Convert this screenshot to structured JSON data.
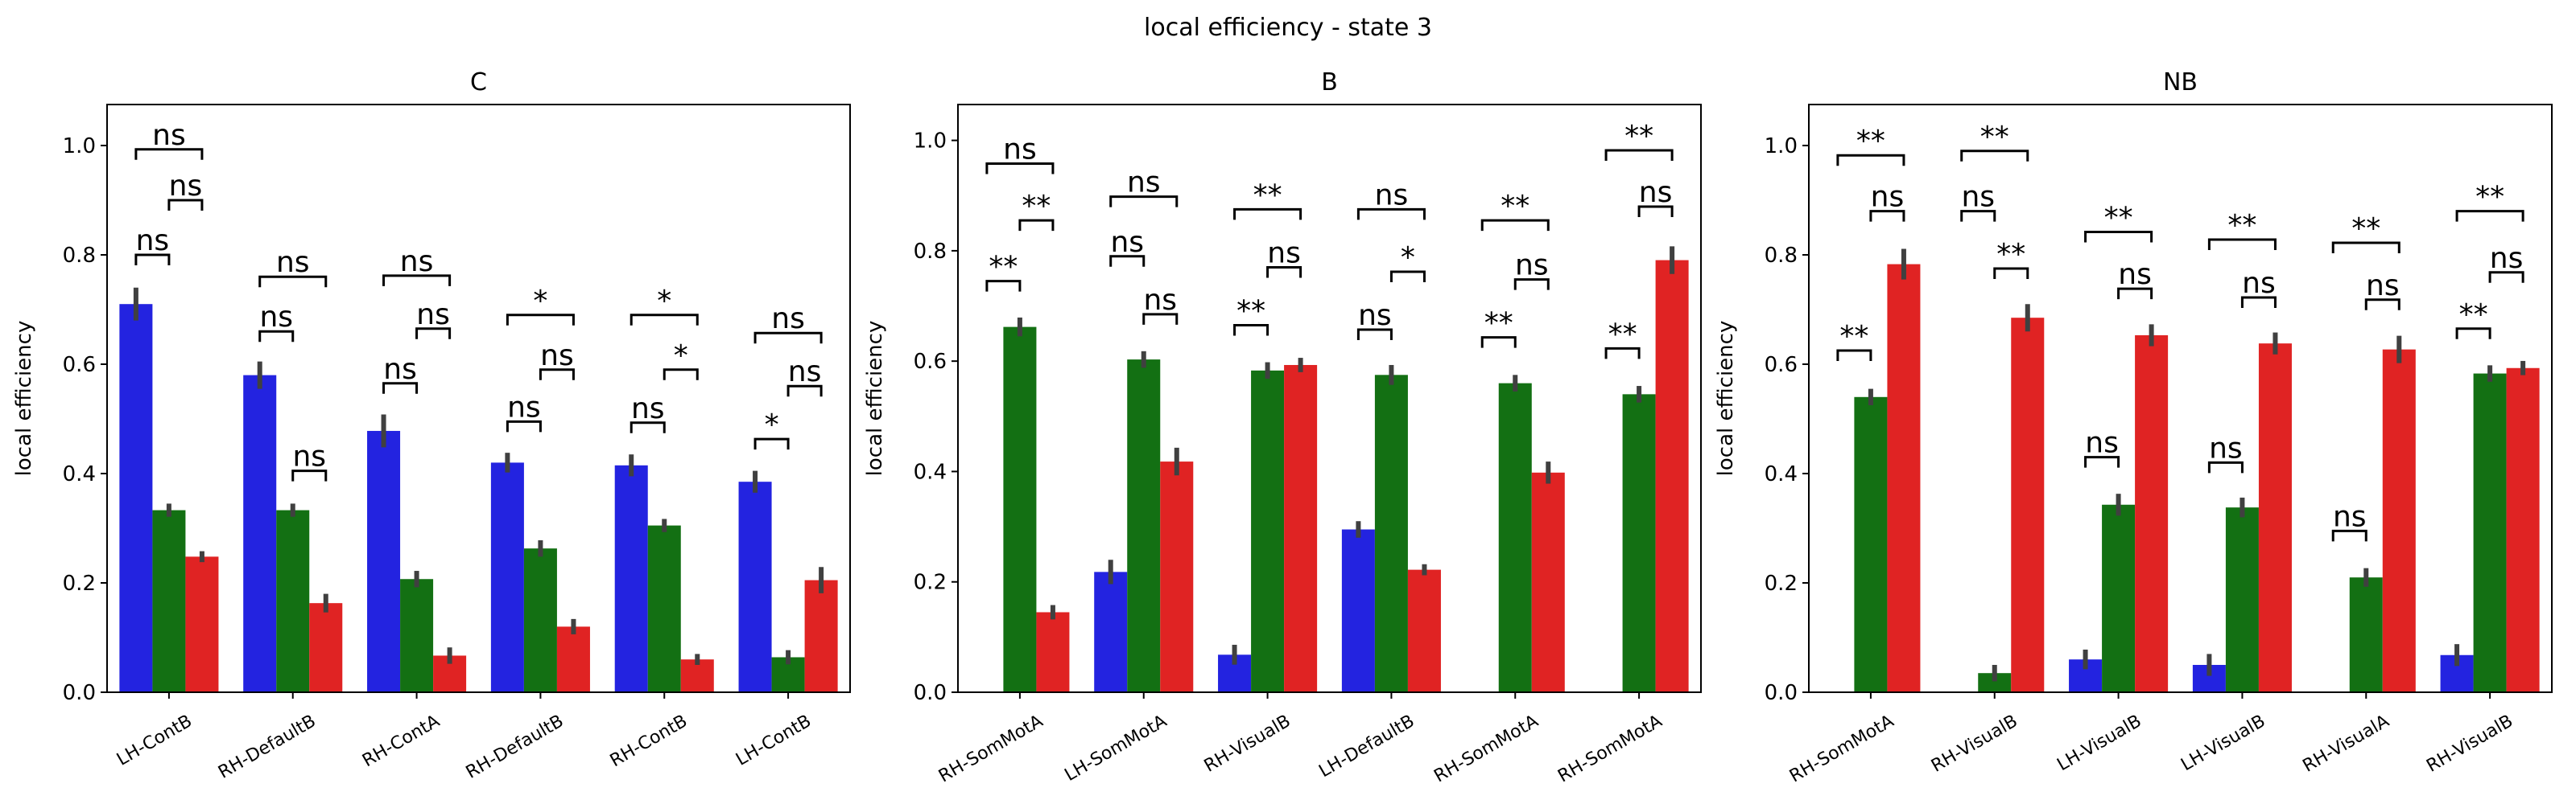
{
  "figure": {
    "title": "local efficiency - state 3"
  },
  "colors": {
    "series0": "#2323e0",
    "series1": "#137013",
    "series2": "#e02323",
    "error_bar": "#404040",
    "axis": "#000000"
  },
  "chart_data": [
    {
      "type": "bar",
      "title": "C",
      "ylabel": "local efficiency",
      "ylim": [
        0,
        1.075
      ],
      "yticks": [
        "0.0",
        "0.2",
        "0.4",
        "0.6",
        "0.8",
        "1.0"
      ],
      "categories": [
        "LH-ContB",
        "RH-DefaultB",
        "RH-ContA",
        "RH-DefaultB",
        "RH-ContB",
        "LH-ContB"
      ],
      "series": [
        {
          "values": [
            0.71,
            0.58,
            0.478,
            0.42,
            0.415,
            0.385
          ],
          "err": [
            0.03,
            0.025,
            0.03,
            0.018,
            0.02,
            0.02
          ]
        },
        {
          "values": [
            0.333,
            0.333,
            0.207,
            0.263,
            0.305,
            0.064
          ],
          "err": [
            0.012,
            0.012,
            0.015,
            0.015,
            0.012,
            0.013
          ]
        },
        {
          "values": [
            0.248,
            0.163,
            0.067,
            0.12,
            0.06,
            0.205
          ],
          "err": [
            0.01,
            0.017,
            0.015,
            0.014,
            0.01,
            0.024
          ]
        }
      ],
      "annotations": [
        [
          {
            "pair": "0-1",
            "label": "ns",
            "y": 0.8
          },
          {
            "pair": "1-2",
            "label": "ns",
            "y": 0.9
          },
          {
            "pair": "0-2",
            "label": "ns",
            "y": 0.993
          }
        ],
        [
          {
            "pair": "0-1",
            "label": "ns",
            "y": 0.66
          },
          {
            "pair": "1-2",
            "label": "ns",
            "y": 0.405
          },
          {
            "pair": "0-2",
            "label": "ns",
            "y": 0.76
          }
        ],
        [
          {
            "pair": "0-1",
            "label": "ns",
            "y": 0.565
          },
          {
            "pair": "1-2",
            "label": "ns",
            "y": 0.665
          },
          {
            "pair": "0-2",
            "label": "ns",
            "y": 0.762
          }
        ],
        [
          {
            "pair": "0-1",
            "label": "ns",
            "y": 0.495
          },
          {
            "pair": "1-2",
            "label": "ns",
            "y": 0.59
          },
          {
            "pair": "0-2",
            "label": "*",
            "y": 0.69
          }
        ],
        [
          {
            "pair": "0-1",
            "label": "ns",
            "y": 0.493
          },
          {
            "pair": "1-2",
            "label": "*",
            "y": 0.59
          },
          {
            "pair": "0-2",
            "label": "*",
            "y": 0.69
          }
        ],
        [
          {
            "pair": "0-1",
            "label": "*",
            "y": 0.463
          },
          {
            "pair": "1-2",
            "label": "ns",
            "y": 0.56
          },
          {
            "pair": "0-2",
            "label": "ns",
            "y": 0.657
          }
        ]
      ]
    },
    {
      "type": "bar",
      "title": "B",
      "ylabel": "local efficiency",
      "ylim": [
        0,
        1.065
      ],
      "yticks": [
        "0.0",
        "0.2",
        "0.4",
        "0.6",
        "0.8",
        "1.0"
      ],
      "categories": [
        "RH-SomMotA",
        "LH-SomMotA",
        "RH-VisualB",
        "LH-DefaultB",
        "RH-SomMotA",
        "RH-SomMotA"
      ],
      "series": [
        {
          "values": [
            null,
            0.218,
            0.068,
            0.295,
            null,
            null
          ],
          "err": [
            0,
            0.022,
            0.018,
            0.015,
            0,
            0
          ]
        },
        {
          "values": [
            0.662,
            0.603,
            0.583,
            0.575,
            0.56,
            0.54
          ],
          "err": [
            0.017,
            0.015,
            0.015,
            0.018,
            0.015,
            0.015
          ]
        },
        {
          "values": [
            0.145,
            0.418,
            0.593,
            0.222,
            0.398,
            0.783
          ],
          "err": [
            0.013,
            0.025,
            0.013,
            0.01,
            0.02,
            0.025
          ]
        }
      ],
      "annotations": [
        [
          {
            "pair": "0-1",
            "label": "**",
            "y": 0.745
          },
          {
            "pair": "1-2",
            "label": "**",
            "y": 0.855
          },
          {
            "pair": "0-2",
            "label": "ns",
            "y": 0.958
          }
        ],
        [
          {
            "pair": "0-1",
            "label": "ns",
            "y": 0.79
          },
          {
            "pair": "1-2",
            "label": "ns",
            "y": 0.685
          },
          {
            "pair": "0-2",
            "label": "ns",
            "y": 0.898
          }
        ],
        [
          {
            "pair": "0-1",
            "label": "**",
            "y": 0.665
          },
          {
            "pair": "1-2",
            "label": "ns",
            "y": 0.77
          },
          {
            "pair": "0-2",
            "label": "**",
            "y": 0.875
          }
        ],
        [
          {
            "pair": "0-1",
            "label": "ns",
            "y": 0.657
          },
          {
            "pair": "1-2",
            "label": "*",
            "y": 0.762
          },
          {
            "pair": "0-2",
            "label": "ns",
            "y": 0.875
          }
        ],
        [
          {
            "pair": "0-1",
            "label": "**",
            "y": 0.643
          },
          {
            "pair": "1-2",
            "label": "ns",
            "y": 0.748
          },
          {
            "pair": "0-2",
            "label": "**",
            "y": 0.855
          }
        ],
        [
          {
            "pair": "0-1",
            "label": "**",
            "y": 0.623
          },
          {
            "pair": "1-2",
            "label": "ns",
            "y": 0.88
          },
          {
            "pair": "0-2",
            "label": "**",
            "y": 0.982
          }
        ]
      ]
    },
    {
      "type": "bar",
      "title": "NB",
      "ylabel": "local efficiency",
      "ylim": [
        0,
        1.075
      ],
      "yticks": [
        "0.0",
        "0.2",
        "0.4",
        "0.6",
        "0.8",
        "1.0"
      ],
      "categories": [
        "RH-SomMotA",
        "RH-VisualB",
        "LH-VisualB",
        "LH-VisualB",
        "RH-VisualA",
        "RH-VisualB"
      ],
      "series": [
        {
          "values": [
            null,
            null,
            0.06,
            0.05,
            null,
            0.068
          ],
          "err": [
            0,
            0,
            0.018,
            0.02,
            0,
            0.02
          ]
        },
        {
          "values": [
            0.54,
            0.035,
            0.343,
            0.338,
            0.21,
            0.583
          ],
          "err": [
            0.015,
            0.015,
            0.02,
            0.018,
            0.017,
            0.015
          ]
        },
        {
          "values": [
            0.783,
            0.685,
            0.653,
            0.638,
            0.627,
            0.593
          ],
          "err": [
            0.028,
            0.025,
            0.02,
            0.02,
            0.025,
            0.013
          ]
        }
      ],
      "annotations": [
        [
          {
            "pair": "0-1",
            "label": "**",
            "y": 0.625
          },
          {
            "pair": "1-2",
            "label": "ns",
            "y": 0.88
          },
          {
            "pair": "0-2",
            "label": "**",
            "y": 0.982
          }
        ],
        [
          {
            "pair": "0-1",
            "label": "ns",
            "y": 0.88
          },
          {
            "pair": "1-2",
            "label": "**",
            "y": 0.775
          },
          {
            "pair": "0-2",
            "label": "**",
            "y": 0.99
          }
        ],
        [
          {
            "pair": "0-1",
            "label": "ns",
            "y": 0.43
          },
          {
            "pair": "1-2",
            "label": "ns",
            "y": 0.738
          },
          {
            "pair": "0-2",
            "label": "**",
            "y": 0.842
          }
        ],
        [
          {
            "pair": "0-1",
            "label": "ns",
            "y": 0.42
          },
          {
            "pair": "1-2",
            "label": "ns",
            "y": 0.722
          },
          {
            "pair": "0-2",
            "label": "**",
            "y": 0.828
          }
        ],
        [
          {
            "pair": "0-1",
            "label": "ns",
            "y": 0.295
          },
          {
            "pair": "1-2",
            "label": "ns",
            "y": 0.718
          },
          {
            "pair": "0-2",
            "label": "**",
            "y": 0.822
          }
        ],
        [
          {
            "pair": "0-1",
            "label": "**",
            "y": 0.665
          },
          {
            "pair": "1-2",
            "label": "ns",
            "y": 0.768
          },
          {
            "pair": "0-2",
            "label": "**",
            "y": 0.88
          }
        ]
      ]
    }
  ]
}
